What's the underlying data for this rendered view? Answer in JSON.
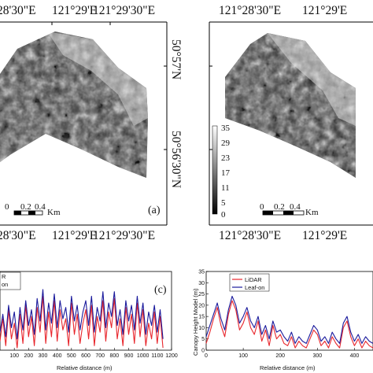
{
  "map_a": {
    "top_labels": [
      "28'30\"E",
      "121°29'E",
      "121°29'30\"E"
    ],
    "bottom_labels": [
      "28'30\"E",
      "121°29'E",
      "121°29'30\"E"
    ],
    "right_labels": [
      "50°57'N",
      "50°56'30\"N"
    ],
    "scalebar": {
      "ticks": [
        "0",
        "0.2",
        "0.4"
      ],
      "unit": "Km"
    },
    "panel_label": "(a)"
  },
  "map_b": {
    "top_labels": [
      "121°28'30\"E",
      "121°29'E"
    ],
    "bottom_labels": [
      "121°28'30\"E",
      "121°29'E"
    ],
    "colorbar": {
      "ticks": [
        "35",
        "29",
        "23",
        "17",
        "11",
        "5",
        "0"
      ],
      "colors": [
        "#ffffff",
        "#000000"
      ]
    },
    "scalebar": {
      "ticks": [
        "0",
        "0.2",
        "0.4"
      ],
      "unit": "Km"
    }
  },
  "chart_data": [
    {
      "type": "line",
      "panel_label": "(c)",
      "xlabel": "Relative distance (m)",
      "ylabel": "",
      "xlim": [
        0,
        1200
      ],
      "ylim": [
        0,
        35
      ],
      "x_ticks": [
        0,
        100,
        200,
        300,
        400,
        500,
        600,
        700,
        800,
        900,
        1000,
        1100,
        1200
      ],
      "y_ticks": [],
      "legend_entries": [
        "R",
        "on"
      ],
      "series": [
        {
          "name": "R",
          "color": "#e8262c",
          "x": [
            0,
            20,
            40,
            60,
            80,
            100,
            120,
            140,
            160,
            180,
            200,
            220,
            240,
            260,
            280,
            300,
            320,
            340,
            360,
            380,
            400,
            420,
            440,
            460,
            480,
            500,
            520,
            540,
            560,
            580,
            600,
            620,
            640,
            660,
            680,
            700,
            720,
            740,
            760,
            780,
            800,
            820,
            840,
            860,
            880,
            900,
            920,
            940,
            960,
            980,
            1000,
            1020,
            1040,
            1060,
            1080,
            1100,
            1120,
            1140
          ],
          "y": [
            4,
            14,
            2,
            18,
            5,
            12,
            1,
            16,
            3,
            20,
            6,
            15,
            2,
            19,
            8,
            24,
            3,
            17,
            6,
            22,
            4,
            18,
            9,
            14,
            2,
            21,
            7,
            16,
            3,
            12,
            18,
            5,
            20,
            2,
            15,
            8,
            22,
            4,
            17,
            10,
            23,
            5,
            14,
            2,
            19,
            7,
            16,
            3,
            21,
            6,
            18,
            2,
            12,
            5,
            17,
            3,
            15,
            1
          ]
        },
        {
          "name": "on",
          "color": "#1a1a9c",
          "x": [
            0,
            20,
            40,
            60,
            80,
            100,
            120,
            140,
            160,
            180,
            200,
            220,
            240,
            260,
            280,
            300,
            320,
            340,
            360,
            380,
            400,
            420,
            440,
            460,
            480,
            500,
            520,
            540,
            560,
            580,
            600,
            620,
            640,
            660,
            680,
            700,
            720,
            740,
            760,
            780,
            800,
            820,
            840,
            860,
            880,
            900,
            920,
            940,
            960,
            980,
            1000,
            1020,
            1040,
            1060,
            1080,
            1100,
            1120,
            1140
          ],
          "y": [
            8,
            16,
            6,
            20,
            10,
            17,
            5,
            19,
            9,
            22,
            11,
            18,
            7,
            23,
            13,
            27,
            9,
            21,
            12,
            25,
            10,
            22,
            14,
            19,
            8,
            24,
            13,
            20,
            9,
            17,
            22,
            11,
            24,
            8,
            19,
            13,
            26,
            10,
            21,
            15,
            26,
            11,
            18,
            7,
            22,
            13,
            20,
            9,
            24,
            12,
            21,
            7,
            17,
            11,
            20,
            8,
            18,
            5
          ]
        }
      ]
    },
    {
      "type": "line",
      "xlabel": "Relative distance (m)",
      "ylabel": "Canopy Height Model (m)",
      "xlim": [
        0,
        450
      ],
      "ylim": [
        0,
        35
      ],
      "x_ticks": [
        0,
        100,
        200,
        300,
        400
      ],
      "y_ticks": [
        0,
        5,
        10,
        15,
        20,
        25,
        30,
        35
      ],
      "legend_entries": [
        "LiDAR",
        "Leaf-on"
      ],
      "series": [
        {
          "name": "LiDAR",
          "color": "#e8262c",
          "x": [
            0,
            10,
            20,
            30,
            40,
            50,
            60,
            70,
            80,
            90,
            100,
            110,
            120,
            130,
            140,
            150,
            160,
            170,
            180,
            190,
            200,
            210,
            220,
            230,
            240,
            250,
            260,
            270,
            280,
            290,
            300,
            310,
            320,
            330,
            340,
            350,
            360,
            370,
            380,
            390,
            400,
            410,
            420,
            430,
            440,
            450
          ],
          "y": [
            3,
            8,
            14,
            19,
            11,
            6,
            16,
            22,
            18,
            9,
            12,
            17,
            10,
            7,
            13,
            4,
            9,
            2,
            11,
            5,
            7,
            3,
            2,
            6,
            1,
            4,
            2,
            1,
            5,
            9,
            7,
            2,
            4,
            1,
            6,
            3,
            1,
            10,
            13,
            6,
            2,
            5,
            1,
            4,
            2,
            1
          ]
        },
        {
          "name": "Leaf-on",
          "color": "#1a1a9c",
          "x": [
            0,
            10,
            20,
            30,
            40,
            50,
            60,
            70,
            80,
            90,
            100,
            110,
            120,
            130,
            140,
            150,
            160,
            170,
            180,
            190,
            200,
            210,
            220,
            230,
            240,
            250,
            260,
            270,
            280,
            290,
            300,
            310,
            320,
            330,
            340,
            350,
            360,
            370,
            380,
            390,
            400,
            410,
            420,
            430,
            440,
            450
          ],
          "y": [
            6,
            11,
            16,
            21,
            14,
            9,
            18,
            24,
            20,
            12,
            15,
            19,
            13,
            10,
            15,
            7,
            11,
            5,
            13,
            8,
            9,
            6,
            4,
            8,
            3,
            6,
            4,
            3,
            7,
            11,
            9,
            4,
            6,
            3,
            8,
            5,
            3,
            12,
            15,
            8,
            4,
            7,
            3,
            6,
            4,
            3
          ]
        }
      ]
    }
  ]
}
